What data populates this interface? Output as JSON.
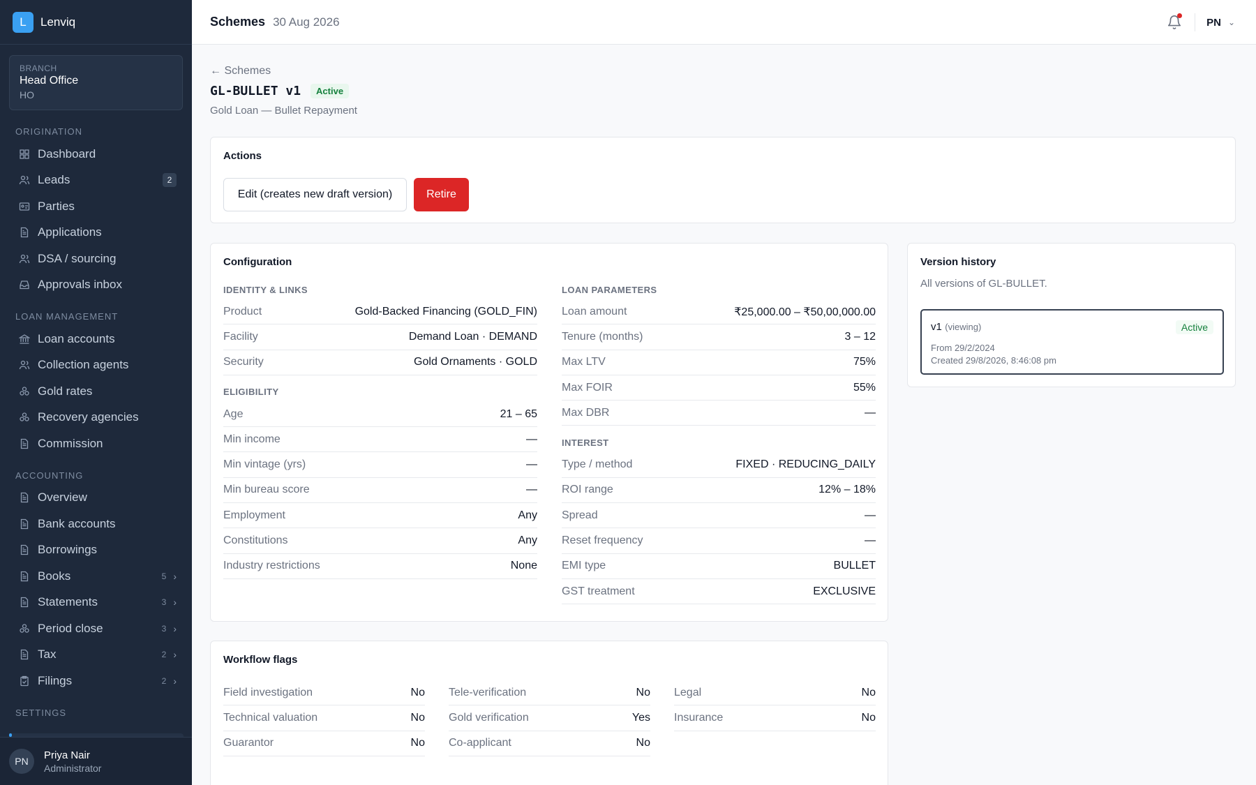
{
  "brand": {
    "logo_letter": "L",
    "name": "Lenviq"
  },
  "branch": {
    "label": "BRANCH",
    "name": "Head Office",
    "code": "HO"
  },
  "sidebar": {
    "sections": [
      {
        "title": "ORIGINATION",
        "items": [
          {
            "label": "Dashboard",
            "icon": "grid-icon"
          },
          {
            "label": "Leads",
            "icon": "users-icon",
            "badge": "2"
          },
          {
            "label": "Parties",
            "icon": "id-card-icon"
          },
          {
            "label": "Applications",
            "icon": "document-icon"
          },
          {
            "label": "DSA / sourcing",
            "icon": "users-icon"
          },
          {
            "label": "Approvals inbox",
            "icon": "inbox-icon"
          }
        ]
      },
      {
        "title": "LOAN MANAGEMENT",
        "items": [
          {
            "label": "Loan accounts",
            "icon": "bank-icon"
          },
          {
            "label": "Collection agents",
            "icon": "users-icon"
          },
          {
            "label": "Gold rates",
            "icon": "coins-icon"
          },
          {
            "label": "Recovery agencies",
            "icon": "coins-icon"
          },
          {
            "label": "Commission",
            "icon": "document-icon"
          }
        ]
      },
      {
        "title": "ACCOUNTING",
        "items": [
          {
            "label": "Overview",
            "icon": "document-icon"
          },
          {
            "label": "Bank accounts",
            "icon": "document-icon"
          },
          {
            "label": "Borrowings",
            "icon": "document-icon"
          },
          {
            "label": "Books",
            "icon": "document-icon",
            "count": "5"
          },
          {
            "label": "Statements",
            "icon": "document-icon",
            "count": "3"
          },
          {
            "label": "Period close",
            "icon": "coins-icon",
            "count": "3"
          },
          {
            "label": "Tax",
            "icon": "document-icon",
            "count": "2"
          },
          {
            "label": "Filings",
            "icon": "clipboard-icon",
            "count": "2"
          }
        ]
      },
      {
        "title": "SETTINGS",
        "items": []
      }
    ]
  },
  "user": {
    "initials": "PN",
    "name": "Priya Nair",
    "role": "Administrator"
  },
  "topbar": {
    "title": "Schemes",
    "date": "30 Aug 2026",
    "user_initials": "PN"
  },
  "page": {
    "back_label": "← Schemes",
    "scheme_code": "GL-BULLET v1",
    "status": "Active",
    "subtitle": "Gold Loan — Bullet Repayment"
  },
  "actions": {
    "title": "Actions",
    "edit_label": "Edit (creates new draft version)",
    "retire_label": "Retire"
  },
  "configuration": {
    "title": "Configuration",
    "left_groups": [
      {
        "heading": "IDENTITY & LINKS",
        "rows": [
          {
            "k": "Product",
            "v": "Gold-Backed Financing (GOLD_FIN)"
          },
          {
            "k": "Facility",
            "v": "Demand Loan · DEMAND"
          },
          {
            "k": "Security",
            "v": "Gold Ornaments · GOLD"
          }
        ]
      },
      {
        "heading": "ELIGIBILITY",
        "rows": [
          {
            "k": "Age",
            "v": "21 – 65"
          },
          {
            "k": "Min income",
            "v": "—"
          },
          {
            "k": "Min vintage (yrs)",
            "v": "—"
          },
          {
            "k": "Min bureau score",
            "v": "—"
          },
          {
            "k": "Employment",
            "v": "Any"
          },
          {
            "k": "Constitutions",
            "v": "Any"
          },
          {
            "k": "Industry restrictions",
            "v": "None"
          }
        ]
      }
    ],
    "right_groups": [
      {
        "heading": "LOAN PARAMETERS",
        "rows": [
          {
            "k": "Loan amount",
            "v": "₹25,000.00 – ₹50,00,000.00"
          },
          {
            "k": "Tenure (months)",
            "v": "3 – 12"
          },
          {
            "k": "Max LTV",
            "v": "75%"
          },
          {
            "k": "Max FOIR",
            "v": "55%"
          },
          {
            "k": "Max DBR",
            "v": "—"
          }
        ]
      },
      {
        "heading": "INTEREST",
        "rows": [
          {
            "k": "Type / method",
            "v": "FIXED · REDUCING_DAILY"
          },
          {
            "k": "ROI range",
            "v": "12% – 18%"
          },
          {
            "k": "Spread",
            "v": "—"
          },
          {
            "k": "Reset frequency",
            "v": "—"
          },
          {
            "k": "EMI type",
            "v": "BULLET"
          },
          {
            "k": "GST treatment",
            "v": "EXCLUSIVE"
          }
        ]
      }
    ]
  },
  "workflow": {
    "title": "Workflow flags",
    "columns": [
      [
        {
          "k": "Field investigation",
          "v": "No"
        },
        {
          "k": "Technical valuation",
          "v": "No"
        },
        {
          "k": "Guarantor",
          "v": "No"
        }
      ],
      [
        {
          "k": "Tele-verification",
          "v": "No"
        },
        {
          "k": "Gold verification",
          "v": "Yes"
        },
        {
          "k": "Co-applicant",
          "v": "No"
        }
      ],
      [
        {
          "k": "Legal",
          "v": "No"
        },
        {
          "k": "Insurance",
          "v": "No"
        }
      ]
    ]
  },
  "history": {
    "title": "Version history",
    "description": "All versions of GL-BULLET.",
    "versions": [
      {
        "name": "v1",
        "viewing": "(viewing)",
        "status": "Active",
        "from": "From 29/2/2024",
        "created": "Created 29/8/2026, 8:46:08 pm"
      }
    ]
  }
}
